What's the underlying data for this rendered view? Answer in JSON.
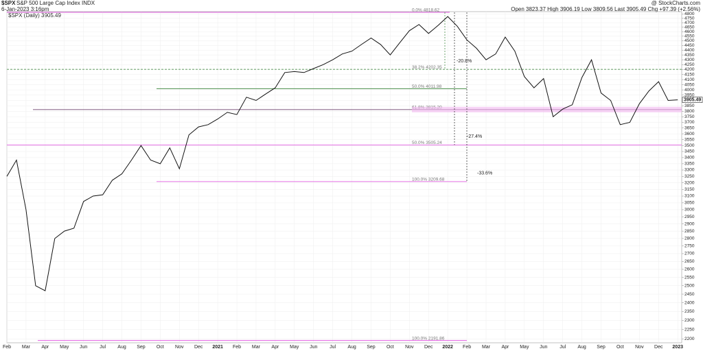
{
  "header": {
    "symbol": "$SPX",
    "name": "S&P 500 Large Cap Index INDX",
    "date": "6-Jan-2023 3:16pm",
    "source": "@ StockCharts.com",
    "quote": "Open 3823.37  High 3906.19  Low 3809.56  Last 3905.49  Chg +97.39 (+2.56%)",
    "legend": "$SPX (Daily) 3905.49"
  },
  "chart_data": {
    "type": "line",
    "log_scale": true,
    "grid": true,
    "color": "#111111",
    "categories": [
      "Feb",
      null,
      "Mar",
      null,
      "Apr",
      null,
      "May",
      null,
      "Jun",
      null,
      "Jul",
      null,
      "Aug",
      null,
      "Sep",
      null,
      "Oct",
      null,
      "Nov",
      null,
      "Dec",
      null,
      "2021",
      null,
      "Feb",
      null,
      "Mar",
      null,
      "Apr",
      null,
      "May",
      null,
      "Jun",
      null,
      "Jul",
      null,
      "Aug",
      null,
      "Sep",
      null,
      "Oct",
      null,
      "Nov",
      null,
      "Dec",
      null,
      "2022",
      null,
      "Feb",
      null,
      "Mar",
      null,
      "Apr",
      null,
      "May",
      null,
      "Jun",
      null,
      "Jul",
      null,
      "Aug",
      null,
      "Sep",
      null,
      "Oct",
      null,
      "Nov",
      null,
      "Dec",
      null,
      "2023"
    ],
    "values": [
      3250,
      3380,
      3000,
      2500,
      2470,
      2800,
      2850,
      2870,
      3060,
      3100,
      3110,
      3220,
      3270,
      3380,
      3500,
      3380,
      3350,
      3480,
      3310,
      3590,
      3660,
      3680,
      3730,
      3790,
      3770,
      3930,
      3900,
      3960,
      4020,
      4170,
      4180,
      4170,
      4210,
      4250,
      4300,
      4360,
      4390,
      4460,
      4530,
      4460,
      4350,
      4480,
      4610,
      4680,
      4580,
      4670,
      4770,
      4660,
      4510,
      4420,
      4300,
      4360,
      4540,
      4390,
      4130,
      4020,
      4110,
      3750,
      3820,
      3860,
      4120,
      4300,
      3970,
      3900,
      3680,
      3700,
      3870,
      3990,
      4080,
      3900,
      3905.49
    ],
    "ylim": [
      2180,
      4850
    ],
    "yticks": [
      2200,
      2250,
      2300,
      2350,
      2400,
      2450,
      2500,
      2550,
      2600,
      2650,
      2700,
      2750,
      2800,
      2850,
      2900,
      2950,
      3000,
      3050,
      3100,
      3150,
      3200,
      3250,
      3300,
      3350,
      3400,
      3450,
      3500,
      3550,
      3600,
      3650,
      3700,
      3750,
      3800,
      3850,
      3900,
      3950,
      4000,
      4050,
      4100,
      4150,
      4200,
      4250,
      4300,
      4350,
      4400,
      4450,
      4500,
      4550,
      4600,
      4650,
      4700,
      4750,
      4800
    ],
    "levels": [
      {
        "label": "0.0% 4818.62",
        "value": 4818.62,
        "color": "#dd44dd"
      },
      {
        "label": "38.2% 4202.35",
        "value": 4202.35,
        "color": "#2e7d2e"
      },
      {
        "label": "50.0% 4011.98",
        "value": 4011.98,
        "color": "#2e7d2e"
      },
      {
        "label": "61.8% 3815.20",
        "value": 3815.2,
        "color": "#552255"
      },
      {
        "label": "50.0% 3505.24",
        "value": 3505.24,
        "color": "#dd44dd"
      },
      {
        "label": "100.0% 3209.68",
        "value": 3209.68,
        "color": "#dd44dd"
      },
      {
        "label": "100.0% 2191.86",
        "value": 2191.86,
        "color": "#dd44dd"
      }
    ],
    "moves": [
      {
        "label": "-20.8%"
      },
      {
        "label": "-27.4%"
      },
      {
        "label": "-33.6%"
      }
    ]
  }
}
